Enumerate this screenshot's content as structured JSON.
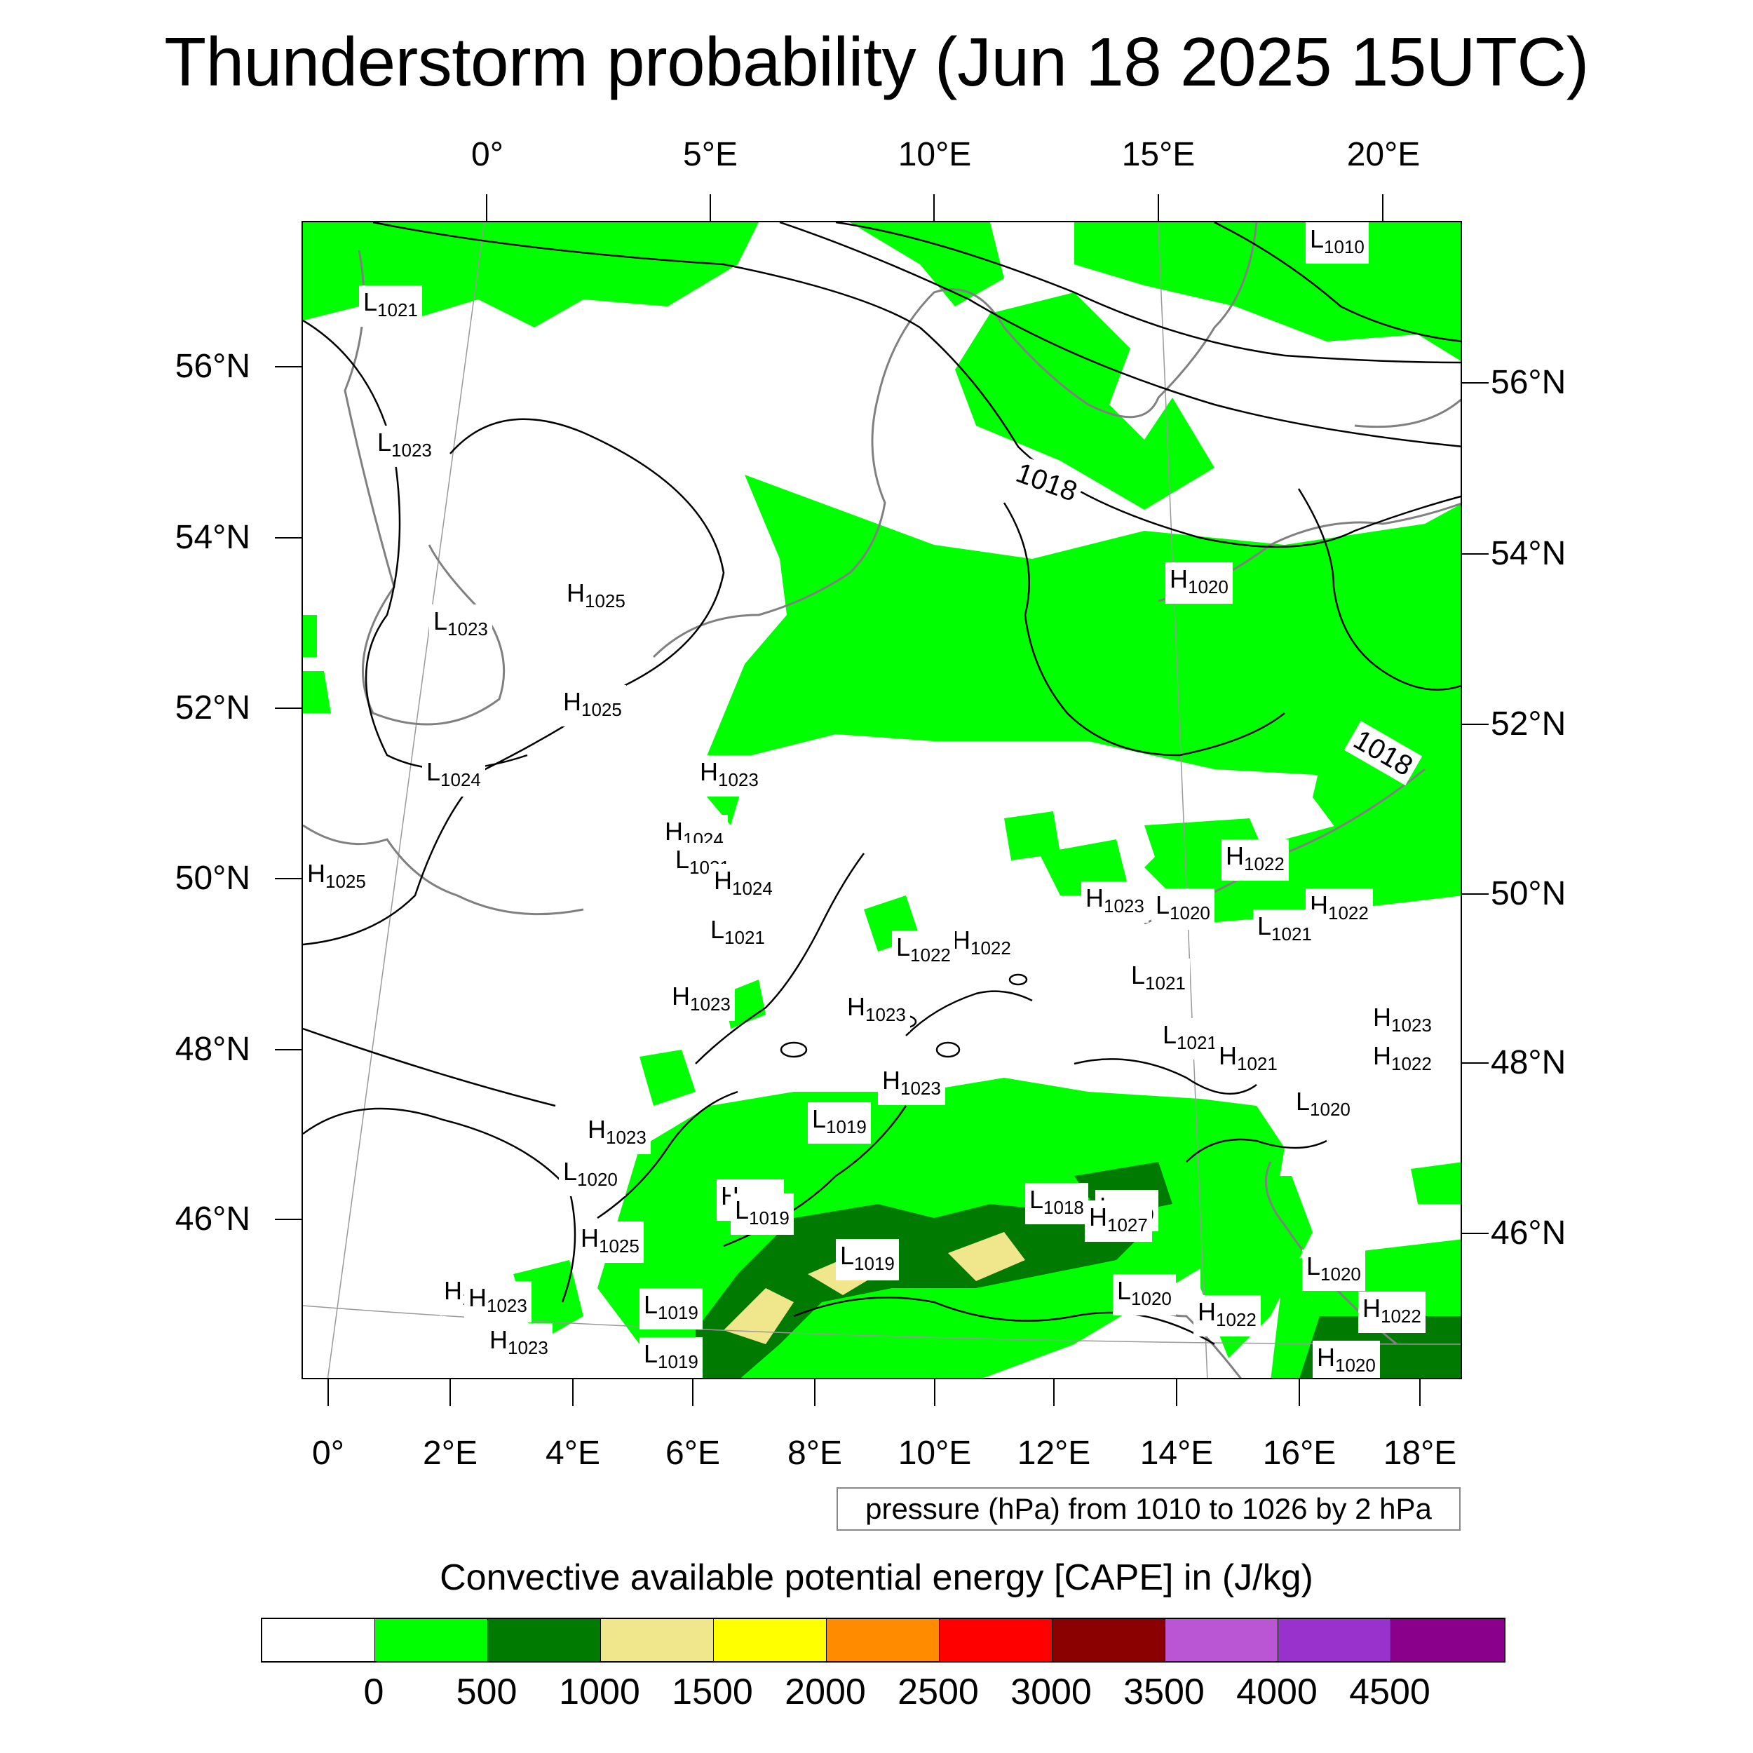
{
  "title": "Thunderstorm probability (Jun 18 2025 15UTC)",
  "top_axis": [
    "0°",
    "5°E",
    "10°E",
    "15°E",
    "20°E"
  ],
  "bottom_axis": [
    "0°",
    "2°E",
    "4°E",
    "6°E",
    "8°E",
    "10°E",
    "12°E",
    "14°E",
    "16°E",
    "18°E"
  ],
  "left_axis": [
    "56°N",
    "54°N",
    "52°N",
    "50°N",
    "48°N",
    "46°N"
  ],
  "right_axis": [
    "56°N",
    "54°N",
    "52°N",
    "50°N",
    "48°N",
    "46°N"
  ],
  "pressure_note": "pressure (hPa) from 1010 to 1026 by 2 hPa",
  "legend": {
    "title": "Convective available potential energy [CAPE] in (J/kg)",
    "colors": [
      "#ffffff",
      "#00ff00",
      "#007a00",
      "#f0e68c",
      "#ffff00",
      "#ff8c00",
      "#ff0000",
      "#8b0000",
      "#ba55d3",
      "#9932cc",
      "#8b008b"
    ],
    "labels": [
      "0",
      "500",
      "1000",
      "1500",
      "2000",
      "2500",
      "3000",
      "3500",
      "4000",
      "4500"
    ]
  },
  "map_labels": [
    {
      "t": "L",
      "v": "1010"
    },
    {
      "t": "L",
      "v": "1021"
    },
    {
      "t": "L",
      "v": "1023"
    },
    {
      "t": "H",
      "v": "1025"
    },
    {
      "t": "L",
      "v": "1023"
    },
    {
      "t": "H",
      "v": "1025"
    },
    {
      "t": "L",
      "v": "1024"
    },
    {
      "t": "H",
      "v": "1025"
    },
    {
      "t": "H",
      "v": "1020"
    },
    {
      "t": "H",
      "v": "1023"
    },
    {
      "t": "H",
      "v": "1024"
    },
    {
      "t": "L",
      "v": "1021"
    },
    {
      "t": "H",
      "v": "1024"
    },
    {
      "t": "H",
      "v": "1023"
    },
    {
      "t": "H",
      "v": "1022"
    },
    {
      "t": "L",
      "v": "1020"
    },
    {
      "t": "H",
      "v": "1022"
    },
    {
      "t": "L",
      "v": "1021"
    },
    {
      "t": "L",
      "v": "1021"
    },
    {
      "t": "H",
      "v": "1022"
    },
    {
      "t": "L",
      "v": "1022"
    },
    {
      "t": "L",
      "v": "1021"
    },
    {
      "t": "H",
      "v": "1023"
    },
    {
      "t": "H",
      "v": "1023"
    },
    {
      "t": "H",
      "v": "1023"
    },
    {
      "t": "L",
      "v": "1021"
    },
    {
      "t": "H",
      "v": "1022"
    },
    {
      "t": "H",
      "v": "1021"
    },
    {
      "t": "L",
      "v": "1020"
    },
    {
      "t": "H",
      "v": "1023"
    },
    {
      "t": "H",
      "v": "1023"
    },
    {
      "t": "L",
      "v": "1019"
    },
    {
      "t": "L",
      "v": "1021"
    },
    {
      "t": "L",
      "v": "1020"
    },
    {
      "t": "H",
      "v": "1027"
    },
    {
      "t": "H",
      "v": "1025"
    },
    {
      "t": "L",
      "v": "1018"
    },
    {
      "t": "L",
      "v": "1019"
    },
    {
      "t": "H",
      "v": "1023"
    },
    {
      "t": "L",
      "v": "1019"
    },
    {
      "t": "H",
      "v": "1027"
    },
    {
      "t": "L",
      "v": "1019"
    },
    {
      "t": "H",
      "v": "1023"
    },
    {
      "t": "L",
      "v": "1020"
    },
    {
      "t": "H",
      "v": "1022"
    },
    {
      "t": "L",
      "v": "1019"
    },
    {
      "t": "H",
      "v": "1023"
    },
    {
      "t": "L",
      "v": "1020"
    },
    {
      "t": "H",
      "v": "1022"
    },
    {
      "t": "H",
      "v": "1020"
    },
    {
      "t": "L",
      "v": "1019"
    }
  ],
  "contour_labels": [
    "1018",
    "1018"
  ]
}
